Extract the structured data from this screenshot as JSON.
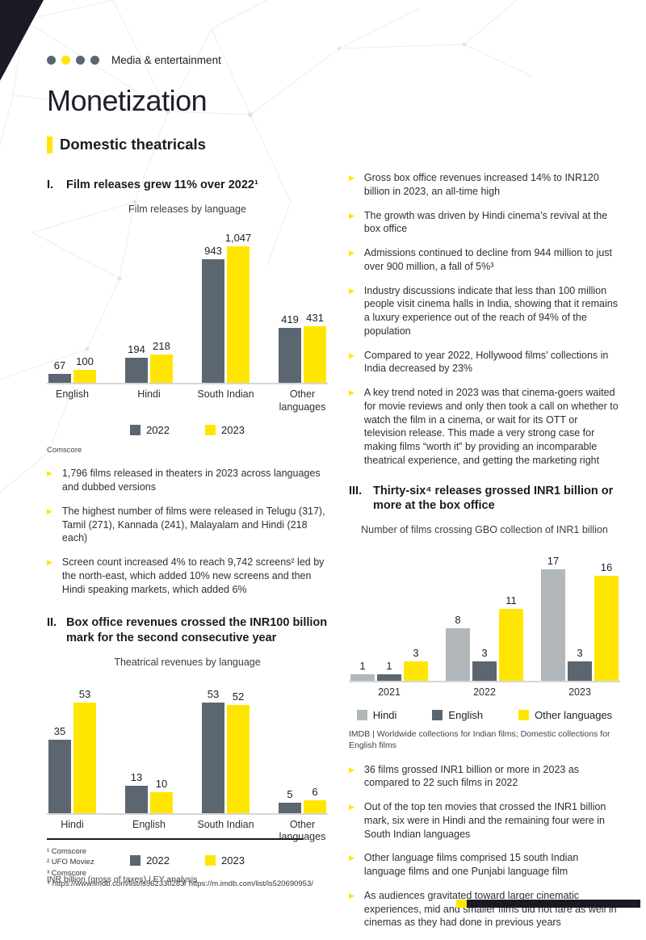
{
  "page": {
    "eyebrow": {
      "dots": [
        "#5b6670",
        "#ffe600",
        "#5b6670",
        "#5b6670"
      ],
      "label": "Media & entertainment"
    },
    "title": "Monetization",
    "section_header": "Domestic theatricals"
  },
  "colors": {
    "accent_yellow": "#ffe600",
    "slate_gray": "#5b6670",
    "light_gray": "#b2b7bb",
    "text": "#2e2e38"
  },
  "left_column": {
    "section1": {
      "numeral": "I.",
      "heading": "Film releases grew 11% over 2022¹",
      "source": "Comscore",
      "bullets": [
        "1,796 films released in theaters in 2023 across languages and dubbed versions",
        "The highest number of films were released in Telugu (317), Tamil (271), Kannada (241), Malayalam and Hindi (218 each)",
        "Screen count increased 4% to reach 9,742 screens² led by the north-east, which added 10% new screens and then Hindi speaking markets, which added 6%"
      ]
    },
    "section2": {
      "numeral": "II.",
      "heading": "Box office revenues crossed the INR100 billion mark for the second consecutive year",
      "source": "INR billion (gross of taxes) | EY analysis"
    }
  },
  "right_column": {
    "bullets_top": [
      "Gross box office revenues increased 14% to INR120 billion in 2023, an all-time high",
      "The growth was driven by Hindi cinema’s revival at the box office",
      "Admissions continued to decline from 944 million to just over 900 million, a fall of 5%³",
      "Industry discussions indicate that less than 100 million people visit cinema halls in India, showing that it remains a luxury experience out of the reach of 94% of the population",
      "Compared to year 2022, Hollywood films’ collections in India decreased by 23%",
      "A key trend noted in 2023 was that cinema-goers waited for movie reviews and only then took a call on whether to watch the film in a cinema, or wait for its OTT or television release. This made a very strong case for making films “worth it” by providing an incomparable theatrical experience, and getting the marketing right"
    ],
    "section3": {
      "numeral": "III.",
      "heading": "Thirty-six⁴ releases grossed INR1 billion or more at the box office",
      "source": "IMDB | Worldwide collections for Indian films; Domestic collections for English films",
      "bullets": [
        "36 films grossed INR1 billion or more in 2023 as compared to 22 such films in 2022",
        "Out of the top ten movies that crossed the INR1 billion mark, six were in Hindi and the remaining four were in South Indian languages",
        "Other language films comprised 15 south Indian language films and one Punjabi language film",
        "As audiences gravitated toward larger cinematic experiences, mid and smaller films did not fare as well in cinemas as they had done in previous years"
      ]
    }
  },
  "footnotes": [
    "¹ Comscore",
    "² UFO Moviez",
    "³ Comscore",
    "⁴ https://www.imdb.com/list/ls562330283/ https://m.imdb.com/list/ls520690953/"
  ],
  "chart_data": [
    {
      "type": "bar",
      "title": "Film releases by language",
      "categories": [
        "English",
        "Hindi",
        "South Indian",
        "Other languages"
      ],
      "series": [
        {
          "name": "2022",
          "color": "#5b6670",
          "values": [
            67,
            194,
            943,
            419
          ],
          "labels": [
            "67",
            "194",
            "943",
            "419"
          ]
        },
        {
          "name": "2023",
          "color": "#ffe600",
          "values": [
            100,
            218,
            1047,
            431
          ],
          "labels": [
            "100",
            "218",
            "1,047",
            "431"
          ]
        }
      ],
      "ylim": [
        0,
        1100
      ],
      "grid": false,
      "value_labels": true,
      "legend_position": "bottom",
      "source": "Comscore"
    },
    {
      "type": "bar",
      "title": "Theatrical revenues by language",
      "categories": [
        "Hindi",
        "English",
        "South Indian",
        "Other languages"
      ],
      "series": [
        {
          "name": "2022",
          "color": "#5b6670",
          "values": [
            35,
            13,
            53,
            5
          ],
          "labels": [
            "35",
            "13",
            "53",
            "5"
          ]
        },
        {
          "name": "2023",
          "color": "#ffe600",
          "values": [
            53,
            10,
            52,
            6
          ],
          "labels": [
            "53",
            "10",
            "52",
            "6"
          ]
        }
      ],
      "ylim": [
        0,
        58
      ],
      "grid": false,
      "value_labels": true,
      "legend_position": "bottom",
      "ylabel": "INR billion (gross of taxes)",
      "source": "INR billion (gross of taxes) | EY analysis"
    },
    {
      "type": "bar",
      "title": "Number of films crossing GBO collection of INR1 billion",
      "categories": [
        "2021",
        "2022",
        "2023"
      ],
      "series": [
        {
          "name": "Hindi",
          "color": "#b2b7bb",
          "values": [
            1,
            8,
            17
          ],
          "labels": [
            "1",
            "8",
            "17"
          ]
        },
        {
          "name": "English",
          "color": "#5b6670",
          "values": [
            1,
            3,
            3
          ],
          "labels": [
            "1",
            "3",
            "3"
          ]
        },
        {
          "name": "Other languages",
          "color": "#ffe600",
          "values": [
            3,
            11,
            16
          ],
          "labels": [
            "3",
            "11",
            "16"
          ]
        }
      ],
      "ylim": [
        0,
        18.5
      ],
      "grid": false,
      "value_labels": true,
      "legend_position": "bottom",
      "source": "IMDB | Worldwide collections for Indian films; Domestic collections for English films"
    }
  ]
}
